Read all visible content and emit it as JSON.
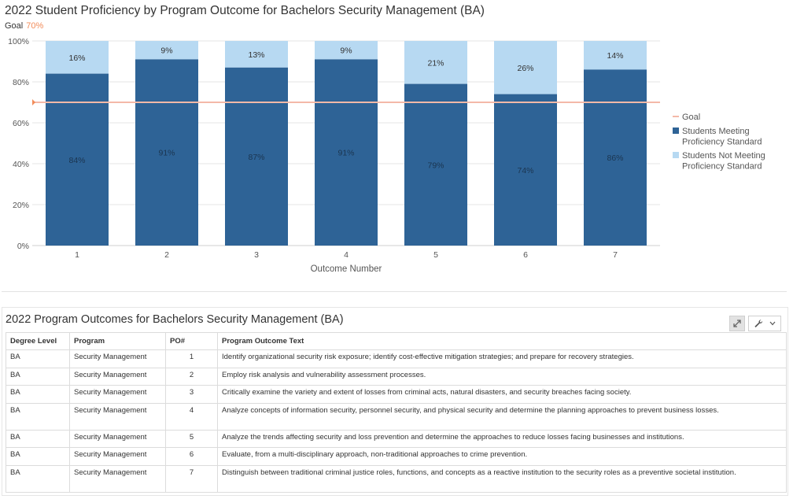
{
  "chart_title": "2022 Student Proficiency by Program Outcome for Bachelors Security Management (BA)",
  "goal": {
    "label": "Goal",
    "value_text": "70%"
  },
  "colors": {
    "meeting": "#2e6396",
    "not_meeting": "#b7d9f2",
    "goal": "#f4b9a8",
    "goal_marker": "#f28c5a"
  },
  "chart_data": {
    "type": "bar",
    "stacked": true,
    "categories": [
      "1",
      "2",
      "3",
      "4",
      "5",
      "6",
      "7"
    ],
    "series": [
      {
        "name": "Students Meeting Proficiency Standard",
        "values": [
          84,
          91,
          87,
          91,
          79,
          74,
          86
        ],
        "labels": [
          "84%",
          "91%",
          "87%",
          "91%",
          "79%",
          "74%",
          "86%"
        ]
      },
      {
        "name": "Students Not Meeting Proficiency Standard",
        "values": [
          16,
          9,
          13,
          9,
          21,
          26,
          14
        ],
        "labels": [
          "16%",
          "9%",
          "13%",
          "9%",
          "21%",
          "26%",
          "14%"
        ]
      }
    ],
    "goal_line": 70,
    "xlabel": "Outcome Number",
    "ylabel": "",
    "ylim": [
      0,
      100
    ],
    "yticks": [
      "0%",
      "20%",
      "40%",
      "60%",
      "80%",
      "100%"
    ],
    "grid": true,
    "legend_placement": "right",
    "legend": [
      "Goal",
      "Students Meeting Proficiency Standard",
      "Students Not Meeting Proficiency Standard"
    ]
  },
  "table": {
    "title": "2022 Program Outcomes for Bachelors Security Management (BA)",
    "tool_icons": [
      "expand-icon",
      "wrench-icon",
      "chevron-down-icon"
    ],
    "columns": [
      "Degree Level",
      "Program",
      "PO#",
      "Program Outcome Text"
    ],
    "rows": [
      [
        "BA",
        "Security Management",
        "1",
        "Identify organizational security risk exposure; identify cost-effective mitigation strategies; and prepare for recovery strategies."
      ],
      [
        "BA",
        "Security Management",
        "2",
        "Employ risk analysis and vulnerability assessment processes."
      ],
      [
        "BA",
        "Security Management",
        "3",
        "Critically examine the variety and extent of losses from criminal acts, natural disasters, and security breaches facing society."
      ],
      [
        "BA",
        "Security Management",
        "4",
        "Analyze concepts of information security, personnel security, and physical security and determine the planning approaches to prevent business losses."
      ],
      [
        "BA",
        "Security Management",
        "5",
        "Analyze the trends affecting security and loss prevention and determine the approaches to reduce losses facing businesses and institutions."
      ],
      [
        "BA",
        "Security Management",
        "6",
        "Evaluate, from a multi-disciplinary approach, non-traditional approaches to crime prevention."
      ],
      [
        "BA",
        "Security Management",
        "7",
        "Distinguish between traditional criminal justice roles, functions, and concepts as a reactive institution to the security roles as a preventive societal institution."
      ]
    ]
  }
}
